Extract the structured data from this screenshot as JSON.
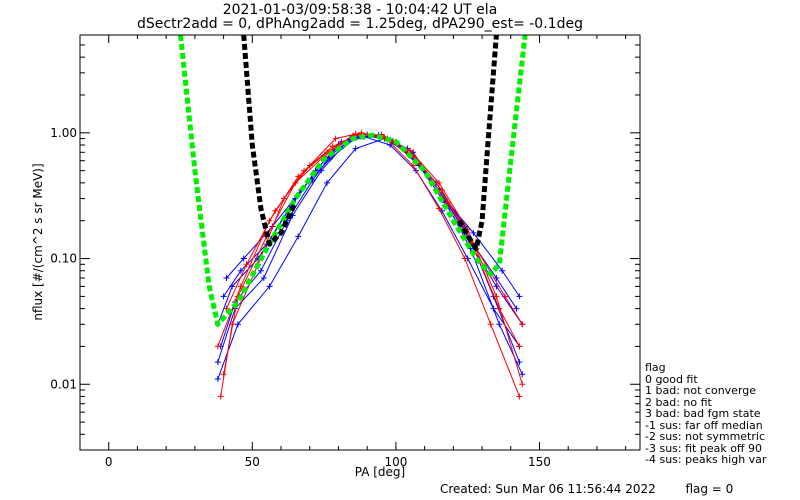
{
  "header": {
    "title_line1": "2021-01-03/09:58:38 - 10:04:42 UT ela",
    "title_line2": "dSectr2add = 0, dPhAng2add = 1.25deg, dPA290_est=  -0.1deg"
  },
  "legend": {
    "title": "flag",
    "items": [
      " 0 good fit",
      " 1 bad: not converge",
      " 2 bad: no fit",
      " 3 bad: bad fgm state",
      "-1 sus: far off median",
      "-2 sus: not symmetric",
      "-3 sus: fit peak off 90",
      "-4 sus: peaks high var"
    ]
  },
  "footer": {
    "created": "Created: Sun Mar 06 11:56:44 2022",
    "flag": "flag = 0"
  },
  "colors": {
    "blue_series": "#0000ff",
    "red_series": "#ff0000",
    "green_fit": "#00ee00",
    "black_fit": "#000000"
  },
  "chart_data": {
    "type": "line",
    "xlabel": "PA [deg]",
    "ylabel": "nflux [#/(cm^2 s sr MeV)]",
    "xlim": [
      -10,
      185
    ],
    "ylim": [
      0.003,
      6
    ],
    "yscale": "log",
    "xticks": [
      0,
      50,
      100,
      150
    ],
    "yticks": [
      0.01,
      0.1,
      1.0
    ],
    "ytick_labels": [
      "0.01",
      "0.10",
      "1.00"
    ],
    "series": [
      {
        "color": "blue",
        "x": [
          38,
          43,
          52,
          63,
          72,
          81,
          90,
          99,
          108,
          117,
          126,
          135,
          144
        ],
        "y": [
          0.03,
          0.06,
          0.1,
          0.25,
          0.5,
          0.85,
          0.97,
          0.86,
          0.55,
          0.28,
          0.13,
          0.06,
          0.03
        ]
      },
      {
        "color": "blue",
        "x": [
          39,
          44,
          53,
          62,
          71,
          80,
          89,
          98,
          107,
          116,
          125,
          134,
          143
        ],
        "y": [
          0.02,
          0.045,
          0.08,
          0.2,
          0.42,
          0.8,
          0.93,
          0.8,
          0.5,
          0.24,
          0.1,
          0.04,
          0.02
        ]
      },
      {
        "color": "blue",
        "x": [
          38,
          44,
          54,
          64,
          74,
          84,
          94,
          104,
          114,
          124,
          134,
          143
        ],
        "y": [
          0.015,
          0.04,
          0.07,
          0.22,
          0.5,
          0.9,
          0.96,
          0.75,
          0.4,
          0.18,
          0.05,
          0.015
        ]
      },
      {
        "color": "blue",
        "x": [
          40,
          46,
          55,
          65,
          75,
          85,
          95,
          105,
          115,
          125,
          135,
          142
        ],
        "y": [
          0.05,
          0.08,
          0.13,
          0.3,
          0.6,
          0.92,
          0.93,
          0.68,
          0.35,
          0.15,
          0.07,
          0.04
        ]
      },
      {
        "color": "blue",
        "x": [
          38,
          45,
          56,
          66,
          76,
          86,
          96,
          106,
          116,
          126,
          136,
          144
        ],
        "y": [
          0.011,
          0.03,
          0.06,
          0.15,
          0.4,
          0.75,
          0.9,
          0.7,
          0.32,
          0.12,
          0.03,
          0.012
        ]
      },
      {
        "color": "blue",
        "x": [
          41,
          47,
          57,
          67,
          77,
          87,
          97,
          107,
          117,
          127,
          137,
          143
        ],
        "y": [
          0.07,
          0.1,
          0.18,
          0.35,
          0.62,
          0.95,
          0.9,
          0.6,
          0.3,
          0.16,
          0.08,
          0.05
        ]
      },
      {
        "color": "red",
        "x": [
          39,
          43,
          52,
          61,
          70,
          79,
          88,
          97,
          106,
          115,
          124,
          133,
          143
        ],
        "y": [
          0.008,
          0.03,
          0.09,
          0.3,
          0.55,
          0.9,
          1.0,
          0.88,
          0.55,
          0.25,
          0.1,
          0.03,
          0.008
        ]
      },
      {
        "color": "red",
        "x": [
          40,
          45,
          55,
          65,
          75,
          85,
          95,
          105,
          115,
          125,
          135,
          144
        ],
        "y": [
          0.012,
          0.05,
          0.15,
          0.4,
          0.65,
          0.95,
          0.97,
          0.72,
          0.4,
          0.17,
          0.05,
          0.01
        ]
      },
      {
        "color": "red",
        "x": [
          38,
          46,
          56,
          66,
          76,
          86,
          96,
          106,
          116,
          126,
          136,
          143
        ],
        "y": [
          0.02,
          0.06,
          0.2,
          0.45,
          0.7,
          0.98,
          0.92,
          0.66,
          0.35,
          0.14,
          0.04,
          0.02
        ]
      },
      {
        "color": "red",
        "x": [
          41,
          48,
          58,
          68,
          78,
          88,
          98,
          108,
          118,
          128,
          138,
          144
        ],
        "y": [
          0.04,
          0.09,
          0.24,
          0.5,
          0.78,
          1.0,
          0.88,
          0.58,
          0.28,
          0.12,
          0.05,
          0.03
        ]
      }
    ],
    "fits": [
      {
        "color": "green",
        "style": "dashed",
        "x": [
          25,
          30,
          35,
          38,
          45,
          55,
          65,
          75,
          85,
          92,
          100,
          110,
          120,
          128,
          133,
          136,
          140,
          145
        ],
        "y": [
          6.0,
          0.5,
          0.06,
          0.03,
          0.045,
          0.12,
          0.3,
          0.62,
          0.9,
          0.96,
          0.85,
          0.5,
          0.2,
          0.1,
          0.075,
          0.09,
          0.6,
          6.0
        ]
      },
      {
        "color": "black",
        "style": "dashed",
        "x": [
          47,
          50,
          53,
          56,
          60,
          65
        ],
        "y": [
          6.0,
          0.8,
          0.25,
          0.13,
          0.16,
          0.28
        ]
      },
      {
        "color": "black",
        "style": "dashed",
        "x": [
          122,
          126,
          128,
          130,
          132,
          135
        ],
        "y": [
          0.2,
          0.14,
          0.12,
          0.2,
          0.8,
          6.0
        ]
      }
    ]
  }
}
